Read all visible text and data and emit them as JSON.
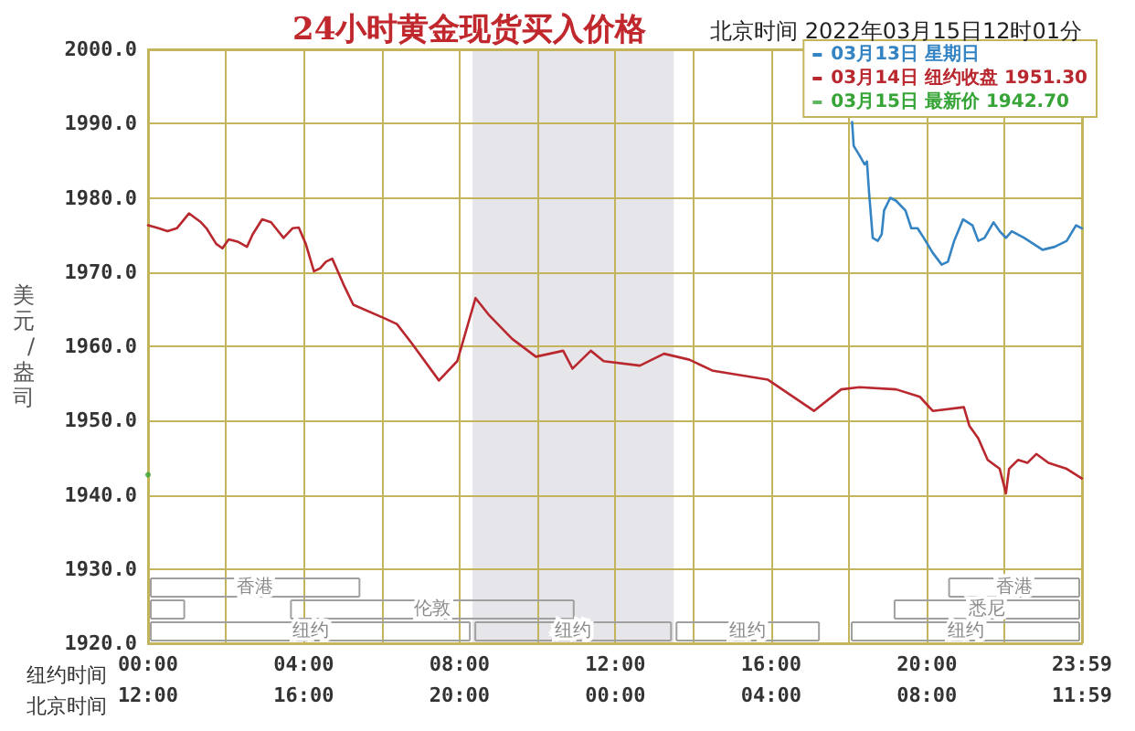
{
  "chart_data": {
    "type": "line",
    "title": "24小时黄金现货买入价格",
    "subtitle": "北京时间 2022年03月15日12时01分",
    "xlabel": "纽约时间",
    "x2label": "北京时间",
    "ylabel": "美元/盎司",
    "xlim": [
      0,
      23.983
    ],
    "xticks": [
      {
        "value": 0,
        "label": "00:00"
      },
      {
        "value": 2,
        "label": null
      },
      {
        "value": 4,
        "label": "04:00"
      },
      {
        "value": 6,
        "label": null
      },
      {
        "value": 8,
        "label": "08:00"
      },
      {
        "value": 10,
        "label": null
      },
      {
        "value": 12,
        "label": "12:00"
      },
      {
        "value": 14,
        "label": null
      },
      {
        "value": 16,
        "label": "16:00"
      },
      {
        "value": 18,
        "label": null
      },
      {
        "value": 20,
        "label": "20:00"
      },
      {
        "value": 22,
        "label": null
      },
      {
        "value": 23.983,
        "label": "23:59"
      }
    ],
    "x2lim": [
      "2022-03-14T12:00",
      "2022-03-15T11:59"
    ],
    "x2ticks": [
      {
        "value": "2022-03-14T12:00",
        "label": "12:00"
      },
      {
        "value": "2022-03-14T16:00",
        "label": "16:00"
      },
      {
        "value": "2022-03-14T20:00",
        "label": "20:00"
      },
      {
        "value": "2022-03-15T00:00",
        "label": "00:00"
      },
      {
        "value": "2022-03-15T04:00",
        "label": "04:00"
      },
      {
        "value": "2022-03-15T08:00",
        "label": "08:00"
      },
      {
        "value": "2022-03-15T11:59",
        "label": "11:59"
      }
    ],
    "ylim": [
      1920,
      2000
    ],
    "yticks": [
      {
        "value": 1920,
        "label": "1920.0"
      },
      {
        "value": 1930,
        "label": "1930.0"
      },
      {
        "value": 1940,
        "label": "1940.0"
      },
      {
        "value": 1950,
        "label": "1950.0"
      },
      {
        "value": 1960,
        "label": "1960.0"
      },
      {
        "value": 1970,
        "label": "1970.0"
      },
      {
        "value": 1980,
        "label": "1980.0"
      },
      {
        "value": 1990,
        "label": "1990.0"
      },
      {
        "value": 2000,
        "label": "2000.0"
      }
    ],
    "grid": true,
    "legend": "top right",
    "marker": "none",
    "bands": [
      {
        "axis": "x",
        "from": 8.333,
        "to": 13.5,
        "color": "#e6e6ea"
      }
    ],
    "annotations": [
      "香港",
      "香港",
      "伦敦",
      "悉尼",
      "纽约",
      "纽约",
      "纽约",
      "纽约"
    ],
    "series": [
      {
        "name": "03月13日 星期日",
        "color": "#3484c4",
        "x": [
          18.08,
          18.12,
          18.27,
          18.4,
          18.46,
          18.52,
          18.61,
          18.74,
          18.84,
          18.9,
          19.06,
          19.21,
          19.45,
          19.6,
          19.76,
          19.92,
          20.15,
          20.38,
          20.54,
          20.7,
          20.93,
          21.17,
          21.32,
          21.48,
          21.71,
          21.87,
          22.03,
          22.18,
          22.5,
          22.97,
          23.28,
          23.59,
          23.83,
          23.98
        ],
        "values": [
          1990.2,
          1987.0,
          1985.7,
          1984.5,
          1984.9,
          1980.4,
          1974.6,
          1974.2,
          1975.1,
          1978.3,
          1980.0,
          1979.6,
          1978.3,
          1975.9,
          1975.9,
          1974.6,
          1972.6,
          1971.0,
          1971.4,
          1974.2,
          1977.1,
          1976.3,
          1974.2,
          1974.6,
          1976.7,
          1975.5,
          1974.6,
          1975.5,
          1974.6,
          1973.0,
          1973.4,
          1974.2,
          1976.3,
          1975.9
        ]
      },
      {
        "name": "03月14日 纽约收盘 1951.30",
        "color": "#b8282e",
        "x": [
          0,
          0.27,
          0.5,
          0.74,
          1.05,
          1.36,
          1.5,
          1.75,
          1.91,
          2.07,
          2.3,
          2.54,
          2.69,
          2.93,
          3.16,
          3.48,
          3.71,
          3.87,
          4.05,
          4.26,
          4.42,
          4.57,
          4.73,
          4.84,
          5.04,
          5.27,
          6.06,
          6.39,
          6.76,
          7.47,
          7.94,
          8.41,
          8.74,
          9.35,
          9.96,
          10.66,
          10.9,
          11.37,
          11.7,
          12.63,
          13.25,
          13.9,
          14.51,
          15.92,
          17.1,
          17.8,
          18.27,
          19.21,
          19.82,
          20.15,
          20.95,
          21.09,
          21.32,
          21.56,
          21.87,
          22.03,
          22.11,
          22.34,
          22.58,
          22.81,
          23.12,
          23.59,
          23.98
        ],
        "values": [
          1976.3,
          1975.9,
          1975.5,
          1975.9,
          1977.9,
          1976.7,
          1975.9,
          1973.8,
          1973.2,
          1974.4,
          1974.1,
          1973.4,
          1975.1,
          1977.1,
          1976.7,
          1974.6,
          1975.9,
          1976.0,
          1973.8,
          1970.1,
          1970.5,
          1971.4,
          1971.8,
          1970.5,
          1968.1,
          1965.6,
          1963.8,
          1963.0,
          1960.5,
          1955.4,
          1958.0,
          1966.5,
          1964.3,
          1961.0,
          1958.6,
          1959.4,
          1957.0,
          1959.4,
          1958.0,
          1957.4,
          1959.0,
          1958.2,
          1956.7,
          1955.5,
          1951.3,
          1954.2,
          1954.5,
          1954.2,
          1953.2,
          1951.3,
          1951.8,
          1949.3,
          1947.6,
          1944.7,
          1943.5,
          1940.2,
          1943.5,
          1944.7,
          1944.3,
          1945.5,
          1944.3,
          1943.5,
          1942.2
        ]
      },
      {
        "name": "03月15日 最新价 1942.70",
        "color": "#36a436",
        "type": "scatter",
        "marker": "circle",
        "x": [
          0
        ],
        "values": [
          1942.7
        ]
      }
    ]
  }
}
